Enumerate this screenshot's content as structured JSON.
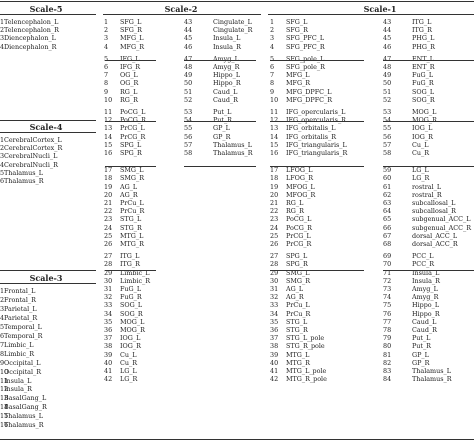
{
  "headers": {
    "scale5": "Scale-5",
    "scale4": "Scale-4",
    "scale3": "Scale-3",
    "scale2": "Scale-2",
    "scale1": "Scale-1"
  },
  "scale5": [
    {
      "n": "1",
      "name": "Telencephalon_L"
    },
    {
      "n": "2",
      "name": "Telencephalon_R"
    },
    {
      "n": "3",
      "name": "Diencephalon_L"
    },
    {
      "n": "4",
      "name": "Diencephalon_R"
    }
  ],
  "scale4": [
    {
      "n": "1",
      "name": "CerebralCortex_L"
    },
    {
      "n": "2",
      "name": "CerebralCortex_R"
    },
    {
      "n": "3",
      "name": "CerebralNucli_L"
    },
    {
      "n": "4",
      "name": "CerebralNucli_R"
    },
    {
      "n": "5",
      "name": "Thalamus_L"
    },
    {
      "n": "6",
      "name": "Thalamus_R"
    }
  ],
  "scale3": [
    {
      "n": "1",
      "name": "Frontal_L"
    },
    {
      "n": "2",
      "name": "Frontal_R"
    },
    {
      "n": "3",
      "name": "Parietal_L"
    },
    {
      "n": "4",
      "name": "Parietal_R"
    },
    {
      "n": "5",
      "name": "Temporal_L"
    },
    {
      "n": "6",
      "name": "Temporal_R"
    },
    {
      "n": "7",
      "name": "Limbic_L"
    },
    {
      "n": "8",
      "name": "Limbic_R"
    },
    {
      "n": "9",
      "name": "Occipital_L"
    },
    {
      "n": "10",
      "name": "Occipital_R"
    },
    {
      "n": "11",
      "name": "Insula_L"
    },
    {
      "n": "12",
      "name": "Insula_R"
    },
    {
      "n": "13",
      "name": "BasalGang_L"
    },
    {
      "n": "14",
      "name": "BasalGang_R"
    },
    {
      "n": "15",
      "name": "Thalamus_L"
    },
    {
      "n": "16",
      "name": "Thalamus_R"
    }
  ],
  "scale2": [
    {
      "n": "1",
      "name": "SFG_L",
      "n2": "43",
      "name2": "Cingulate_L"
    },
    {
      "n": "2",
      "name": "SFG_R",
      "n2": "44",
      "name2": "Cingulate_R"
    },
    {
      "n": "3",
      "name": "MFG_L",
      "n2": "45",
      "name2": "Insula_L"
    },
    {
      "n": "4",
      "name": "MFG_R",
      "n2": "46",
      "name2": "Insula_R"
    },
    {
      "n": "5",
      "name": "IFG_L",
      "n2": "47",
      "name2": "Amyg_L"
    },
    {
      "n": "6",
      "name": "IFG_R",
      "n2": "48",
      "name2": "Amyg_R"
    },
    {
      "n": "7",
      "name": "OG_L",
      "n2": "49",
      "name2": "Hippo_L"
    },
    {
      "n": "8",
      "name": "OG_R",
      "n2": "50",
      "name2": "Hippo_R"
    },
    {
      "n": "9",
      "name": "RG_L",
      "n2": "51",
      "name2": "Caud_L"
    },
    {
      "n": "10",
      "name": "RG_R",
      "n2": "52",
      "name2": "Caud_R"
    },
    {
      "n": "11",
      "name": "PoCG_L",
      "n2": "53",
      "name2": "Put_L"
    },
    {
      "n": "12",
      "name": "PoCG_R",
      "n2": "54",
      "name2": "Put_R"
    },
    {
      "n": "13",
      "name": "PrCG_L",
      "n2": "55",
      "name2": "GP_L"
    },
    {
      "n": "14",
      "name": "PrCG_R",
      "n2": "56",
      "name2": "GP_R"
    },
    {
      "n": "15",
      "name": "SPG_L",
      "n2": "57",
      "name2": "Thalamus_L"
    },
    {
      "n": "16",
      "name": "SPG_R",
      "n2": "58",
      "name2": "Thalamus_R"
    },
    {
      "n": "17",
      "name": "SMG_L",
      "n2": "",
      "name2": ""
    },
    {
      "n": "18",
      "name": "SMG_R",
      "n2": "",
      "name2": ""
    },
    {
      "n": "19",
      "name": "AG_L",
      "n2": "",
      "name2": ""
    },
    {
      "n": "20",
      "name": "AG_R",
      "n2": "",
      "name2": ""
    },
    {
      "n": "21",
      "name": "PrCu_L",
      "n2": "",
      "name2": ""
    },
    {
      "n": "22",
      "name": "PrCu_R",
      "n2": "",
      "name2": ""
    },
    {
      "n": "23",
      "name": "STG_L",
      "n2": "",
      "name2": ""
    },
    {
      "n": "24",
      "name": "STG_R",
      "n2": "",
      "name2": ""
    },
    {
      "n": "25",
      "name": "MTG_L",
      "n2": "",
      "name2": ""
    },
    {
      "n": "26",
      "name": "MTG_R",
      "n2": "",
      "name2": ""
    },
    {
      "n": "27",
      "name": "ITG_L",
      "n2": "",
      "name2": ""
    },
    {
      "n": "28",
      "name": "ITG_R",
      "n2": "",
      "name2": ""
    },
    {
      "n": "29",
      "name": "Limbic_L",
      "n2": "",
      "name2": ""
    },
    {
      "n": "30",
      "name": "Limbic_R",
      "n2": "",
      "name2": ""
    },
    {
      "n": "31",
      "name": "FuG_L",
      "n2": "",
      "name2": ""
    },
    {
      "n": "32",
      "name": "FuG_R",
      "n2": "",
      "name2": ""
    },
    {
      "n": "33",
      "name": "SOG_L",
      "n2": "",
      "name2": ""
    },
    {
      "n": "34",
      "name": "SOG_R",
      "n2": "",
      "name2": ""
    },
    {
      "n": "35",
      "name": "MOG_L",
      "n2": "",
      "name2": ""
    },
    {
      "n": "36",
      "name": "MOG_R",
      "n2": "",
      "name2": ""
    },
    {
      "n": "37",
      "name": "IOG_L",
      "n2": "",
      "name2": ""
    },
    {
      "n": "38",
      "name": "IOG_R",
      "n2": "",
      "name2": ""
    },
    {
      "n": "39",
      "name": "Cu_L",
      "n2": "",
      "name2": ""
    },
    {
      "n": "40",
      "name": "Cu_R",
      "n2": "",
      "name2": ""
    },
    {
      "n": "41",
      "name": "LG_L",
      "n2": "",
      "name2": ""
    },
    {
      "n": "42",
      "name": "LG_R",
      "n2": "",
      "name2": ""
    }
  ],
  "scale1": [
    {
      "n": "1",
      "name": "SFG_L",
      "n2": "43",
      "name2": "ITG_L"
    },
    {
      "n": "2",
      "name": "SFG_R",
      "n2": "44",
      "name2": "ITG_R"
    },
    {
      "n": "3",
      "name": "SFG_PFC_L",
      "n2": "45",
      "name2": "PHG_L"
    },
    {
      "n": "4",
      "name": "SFG_PFC_R",
      "n2": "46",
      "name2": "PHG_R"
    },
    {
      "n": "5",
      "name": "SFG_pole_L",
      "n2": "47",
      "name2": "ENT_L"
    },
    {
      "n": "6",
      "name": "SFG_pole_R",
      "n2": "48",
      "name2": "ENT_R"
    },
    {
      "n": "7",
      "name": "MFG_L",
      "n2": "49",
      "name2": "FuG_L"
    },
    {
      "n": "8",
      "name": "MFG_R",
      "n2": "50",
      "name2": "FuG_R"
    },
    {
      "n": "9",
      "name": "MFG_DPFC_L",
      "n2": "51",
      "name2": "SOG_L"
    },
    {
      "n": "10",
      "name": "MFG_DPFC_R",
      "n2": "52",
      "name2": "SOG_R"
    },
    {
      "n": "11",
      "name": "IFG_opercularis_L",
      "n2": "53",
      "name2": "MOG_L"
    },
    {
      "n": "12",
      "name": "IFG_opercularis_R",
      "n2": "54",
      "name2": "MOG_R"
    },
    {
      "n": "13",
      "name": "IFG_orbitalis_L",
      "n2": "55",
      "name2": "IOG_L"
    },
    {
      "n": "14",
      "name": "IFG_orbitalis_R",
      "n2": "56",
      "name2": "IOG_R"
    },
    {
      "n": "15",
      "name": "IFG_triangularis_L",
      "n2": "57",
      "name2": "Cu_L"
    },
    {
      "n": "16",
      "name": "IFG_triangularis_R",
      "n2": "58",
      "name2": "Cu_R"
    },
    {
      "n": "17",
      "name": "LFOG_L",
      "n2": "59",
      "name2": "LG_L"
    },
    {
      "n": "18",
      "name": "LFOG_R",
      "n2": "60",
      "name2": "LG_R"
    },
    {
      "n": "19",
      "name": "MFOG_L",
      "n2": "61",
      "name2": "rostral_L"
    },
    {
      "n": "20",
      "name": "MFOG_R",
      "n2": "62",
      "name2": "rostral_R"
    },
    {
      "n": "21",
      "name": "RG_L",
      "n2": "63",
      "name2": "subcallosal_L"
    },
    {
      "n": "22",
      "name": "RG_R",
      "n2": "64",
      "name2": "subcallosal_R"
    },
    {
      "n": "23",
      "name": "PoCG_L",
      "n2": "65",
      "name2": "subgenual_ACC_L"
    },
    {
      "n": "24",
      "name": "PoCG_R",
      "n2": "66",
      "name2": "subgenual_ACC_R"
    },
    {
      "n": "25",
      "name": "PrCG_L",
      "n2": "67",
      "name2": "dorsal_ACC_L"
    },
    {
      "n": "26",
      "name": "PrCG_R",
      "n2": "68",
      "name2": "dorsal_ACC_R"
    },
    {
      "n": "27",
      "name": "SPG_L",
      "n2": "69",
      "name2": "PCC_L"
    },
    {
      "n": "28",
      "name": "SPG_R",
      "n2": "70",
      "name2": "PCC_R"
    },
    {
      "n": "29",
      "name": "SMG_L",
      "n2": "71",
      "name2": "Insula_L"
    },
    {
      "n": "30",
      "name": "SMG_R",
      "n2": "72",
      "name2": "Insula_R"
    },
    {
      "n": "31",
      "name": "AG_L",
      "n2": "73",
      "name2": "Amyg_L"
    },
    {
      "n": "32",
      "name": "AG_R",
      "n2": "74",
      "name2": "Amyg_R"
    },
    {
      "n": "33",
      "name": "PrCu_L",
      "n2": "75",
      "name2": "Hippo_L"
    },
    {
      "n": "34",
      "name": "PrCu_R",
      "n2": "76",
      "name2": "Hippo_R"
    },
    {
      "n": "35",
      "name": "STG_L",
      "n2": "77",
      "name2": "Caud_L"
    },
    {
      "n": "36",
      "name": "STG_R",
      "n2": "78",
      "name2": "Caud_R"
    },
    {
      "n": "37",
      "name": "STG_L_pole",
      "n2": "79",
      "name2": "Put_L"
    },
    {
      "n": "38",
      "name": "STG_R_pole",
      "n2": "80",
      "name2": "Put_R"
    },
    {
      "n": "39",
      "name": "MTG_L",
      "n2": "81",
      "name2": "GP_L"
    },
    {
      "n": "40",
      "name": "MTG_R",
      "n2": "82",
      "name2": "GP_R"
    },
    {
      "n": "41",
      "name": "MTG_L_pole",
      "n2": "83",
      "name2": "Thalamus_L"
    },
    {
      "n": "42",
      "name": "MTG_R_pole",
      "n2": "84",
      "name2": "Thalamus_R"
    }
  ]
}
